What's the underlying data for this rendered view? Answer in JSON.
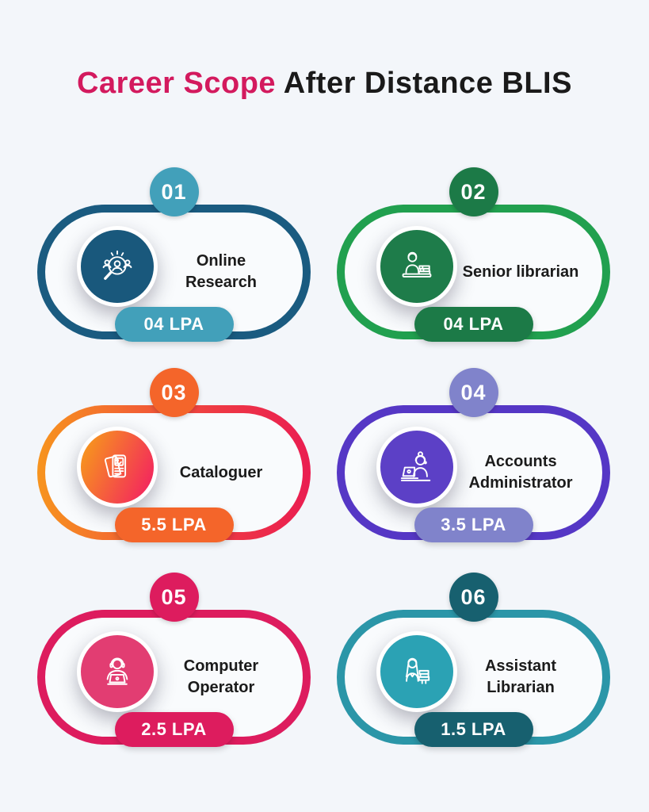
{
  "page": {
    "background": "#F3F6FA",
    "card_interior": "#F9FBFD",
    "title": {
      "highlight": "Career Scope",
      "rest": " After Distance BLIS",
      "highlight_color": "#D31A5E",
      "rest_color": "#1A1A1A"
    }
  },
  "cards": [
    {
      "number": "01",
      "title": "Online Research",
      "salary": "04 LPA",
      "icon": "online-research-icon",
      "colors": {
        "ring": "#1A5B80",
        "badge": "#42A0BA",
        "pill": "#42A0BA",
        "icon_bg": "#19587C"
      }
    },
    {
      "number": "02",
      "title": "Senior librarian",
      "salary": "04 LPA",
      "icon": "senior-librarian-icon",
      "colors": {
        "ring": "#21A04F",
        "badge": "#1C7A47",
        "pill": "#1C7A47",
        "icon_bg": "#1E7C4A"
      }
    },
    {
      "number": "03",
      "title": "Cataloguer",
      "salary": "5.5 LPA",
      "icon": "cataloguer-icon",
      "colors": {
        "ring": "linear-gradient(90deg,#F7941E 0%,#EE3A44 65%,#EA1D51 100%)",
        "badge": "#F4652A",
        "pill": "#F4652A",
        "icon_bg": "linear-gradient(115deg,#F7941E 10%,#F3275D 90%)"
      }
    },
    {
      "number": "04",
      "title": "Accounts Administrator",
      "salary": "3.5 LPA",
      "icon": "accounts-administrator-icon",
      "colors": {
        "ring": "#5537C5",
        "badge": "#8083CB",
        "pill": "#8083CB",
        "icon_bg": "#5C40C6"
      }
    },
    {
      "number": "05",
      "title": "Computer Operator",
      "salary": "2.5 LPA",
      "icon": "computer-operator-icon",
      "colors": {
        "ring": "#DD1C5E",
        "badge": "#DD1C5E",
        "pill": "#DD1C5E",
        "icon_bg": "#E23D72"
      }
    },
    {
      "number": "06",
      "title": "Assistant Librarian",
      "salary": "1.5 LPA",
      "icon": "assistant-librarian-icon",
      "colors": {
        "ring": "#2B96A8",
        "badge": "#17606F",
        "pill": "#17606F",
        "icon_bg": "#2BA2B4"
      }
    }
  ]
}
